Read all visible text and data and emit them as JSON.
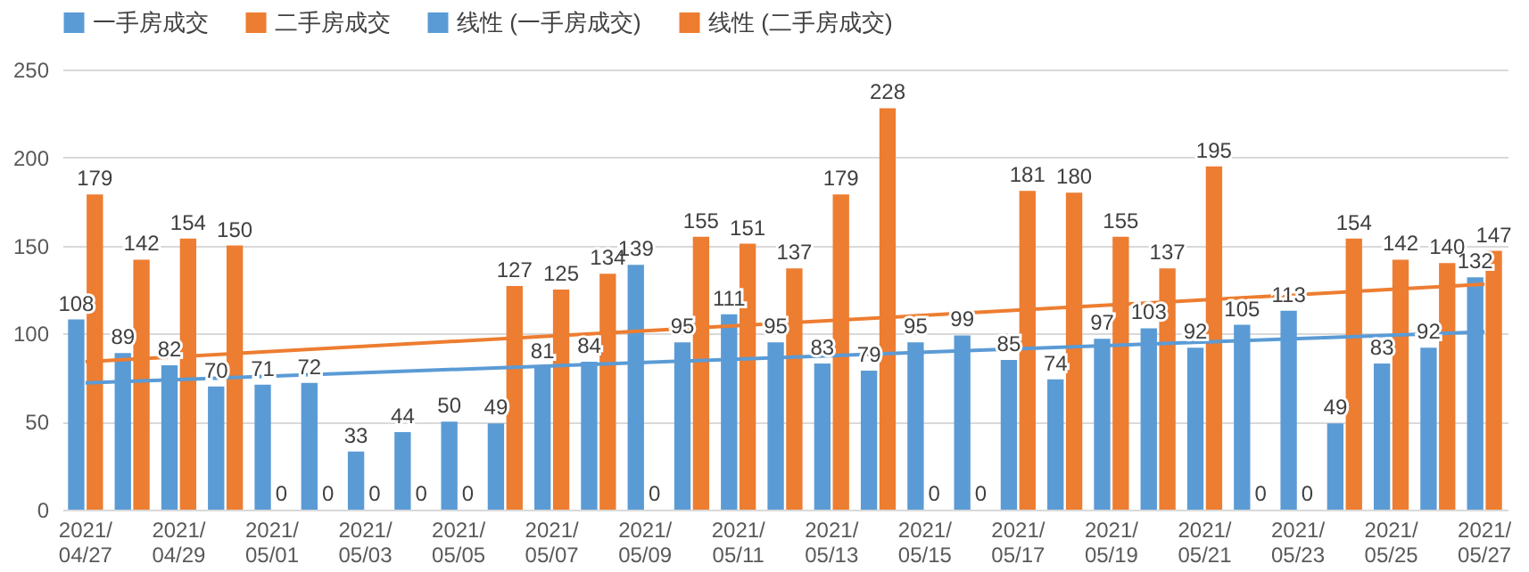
{
  "chart_data": {
    "type": "bar",
    "categories": [
      "2021/04/27",
      null,
      "2021/04/29",
      null,
      "2021/05/01",
      null,
      "2021/05/03",
      null,
      "2021/05/05",
      null,
      "2021/05/07",
      null,
      "2021/05/09",
      null,
      "2021/05/11",
      null,
      "2021/05/13",
      null,
      "2021/05/15",
      null,
      "2021/05/17",
      null,
      "2021/05/19",
      null,
      "2021/05/21",
      null,
      "2021/05/23",
      null,
      "2021/05/25",
      null,
      "2021/05/27"
    ],
    "series": [
      {
        "name": "一手房成交",
        "type": "bar",
        "color": "#5b9bd5",
        "values": [
          108,
          89,
          82,
          70,
          71,
          72,
          33,
          44,
          50,
          49,
          81,
          84,
          139,
          95,
          111,
          95,
          83,
          79,
          95,
          99,
          85,
          74,
          97,
          103,
          92,
          105,
          113,
          49,
          83,
          92,
          132
        ]
      },
      {
        "name": "二手房成交",
        "type": "bar",
        "color": "#ed7d31",
        "values": [
          179,
          142,
          154,
          150,
          0,
          0,
          0,
          0,
          0,
          127,
          125,
          134,
          0,
          155,
          151,
          137,
          179,
          228,
          0,
          0,
          181,
          180,
          155,
          137,
          195,
          0,
          0,
          154,
          142,
          140,
          147
        ]
      },
      {
        "name": "线性 (一手房成交)",
        "type": "line",
        "color": "#5b9bd5",
        "x": [
          "2021/04/27",
          "2021/05/27"
        ],
        "values": [
          72,
          101
        ],
        "value_labels": [
          null,
          null
        ]
      },
      {
        "name": "线性 (二手房成交)",
        "type": "line",
        "color": "#ed7d31",
        "x": [
          "2021/04/27",
          "2021/05/27"
        ],
        "values": [
          84,
          128
        ],
        "value_labels": [
          null,
          null
        ]
      }
    ],
    "ylim": [
      0,
      250
    ],
    "yticks": [
      0,
      50,
      100,
      150,
      200,
      250
    ],
    "grid": "y",
    "legend": "top",
    "data_labels": true
  }
}
